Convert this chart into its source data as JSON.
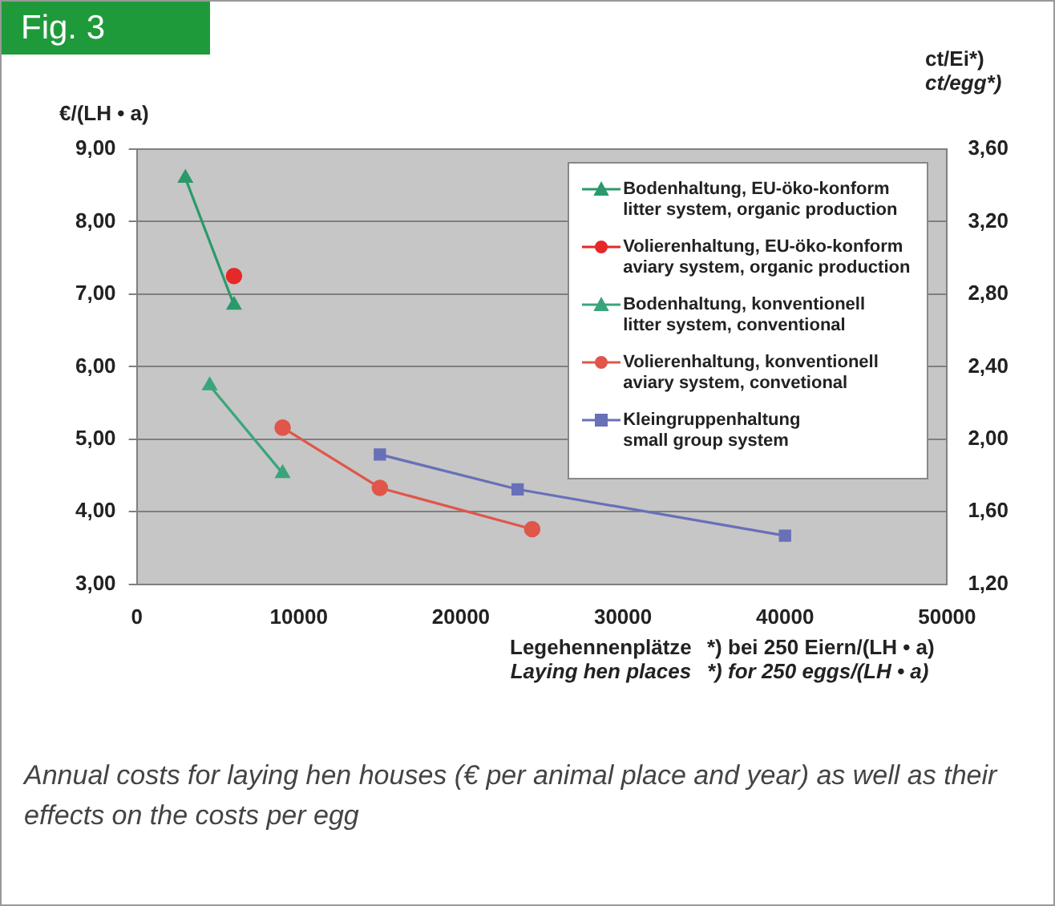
{
  "chart_data": {
    "type": "line",
    "title": "Fig. 3",
    "xlabel": "Legehennenplätze\nLaying hen places",
    "ylabel": "€/(LH • a)",
    "y2label": "ct/Ei*)\nct/egg*)",
    "annotations": [
      "*) bei 250 Eiern/(LH • a)\n*) for 250 eggs/(LH • a)",
      "Annual costs for laying hen houses (€ per animal place and year) as well as their effects on the costs per egg"
    ],
    "xlim": [
      0,
      50000
    ],
    "xticks": [
      0,
      10000,
      20000,
      30000,
      40000,
      50000
    ],
    "ylim": [
      3,
      9
    ],
    "yticks": [
      {
        "value": 3,
        "label": "3,00"
      },
      {
        "value": 4,
        "label": "4,00"
      },
      {
        "value": 5,
        "label": "5,00"
      },
      {
        "value": 6,
        "label": "6,00"
      },
      {
        "value": 7,
        "label": "7,00"
      },
      {
        "value": 8,
        "label": "8,00"
      },
      {
        "value": 9,
        "label": "9,00"
      }
    ],
    "y2lim": [
      1.2,
      3.6
    ],
    "y2ticks": [
      {
        "value": 1.2,
        "label": "1,20"
      },
      {
        "value": 1.6,
        "label": "1,60"
      },
      {
        "value": 2,
        "label": "2,00"
      },
      {
        "value": 2.4,
        "label": "2,40"
      },
      {
        "value": 2.8,
        "label": "2,80"
      },
      {
        "value": 3.2,
        "label": "3,20"
      },
      {
        "value": 3.6,
        "label": "3,60"
      }
    ],
    "grid": "y",
    "legend": "top right",
    "line_style": "solid",
    "series": [
      {
        "name": "Bodenhaltung, EU-öko-konform\nlitter system, organic production",
        "color": "#2a9a6a",
        "marker": "triangle",
        "x": [
          3000,
          6000
        ],
        "values": [
          8.6,
          6.85
        ]
      },
      {
        "name": "Volierenhaltung, EU-öko-konform\naviary system, organic production",
        "color": "#e62828",
        "marker": "circle",
        "x": [
          6000
        ],
        "values": [
          7.25
        ]
      },
      {
        "name": "Bodenhaltung, konventionell\nlitter system, conventional",
        "color": "#3aa57a",
        "marker": "triangle",
        "x": [
          4500,
          9000
        ],
        "values": [
          5.74,
          4.53
        ]
      },
      {
        "name": "Volierenhaltung, konventionell\naviary system, convetional",
        "color": "#e0564a",
        "marker": "circle",
        "x": [
          9000,
          15000,
          24400
        ],
        "values": [
          5.16,
          4.33,
          3.76
        ]
      },
      {
        "name": "Kleingruppenhaltung\nsmall group system",
        "color": "#6870b8",
        "marker": "square",
        "x": [
          15000,
          23500,
          40000
        ],
        "values": [
          4.79,
          4.31,
          3.67
        ]
      }
    ]
  }
}
